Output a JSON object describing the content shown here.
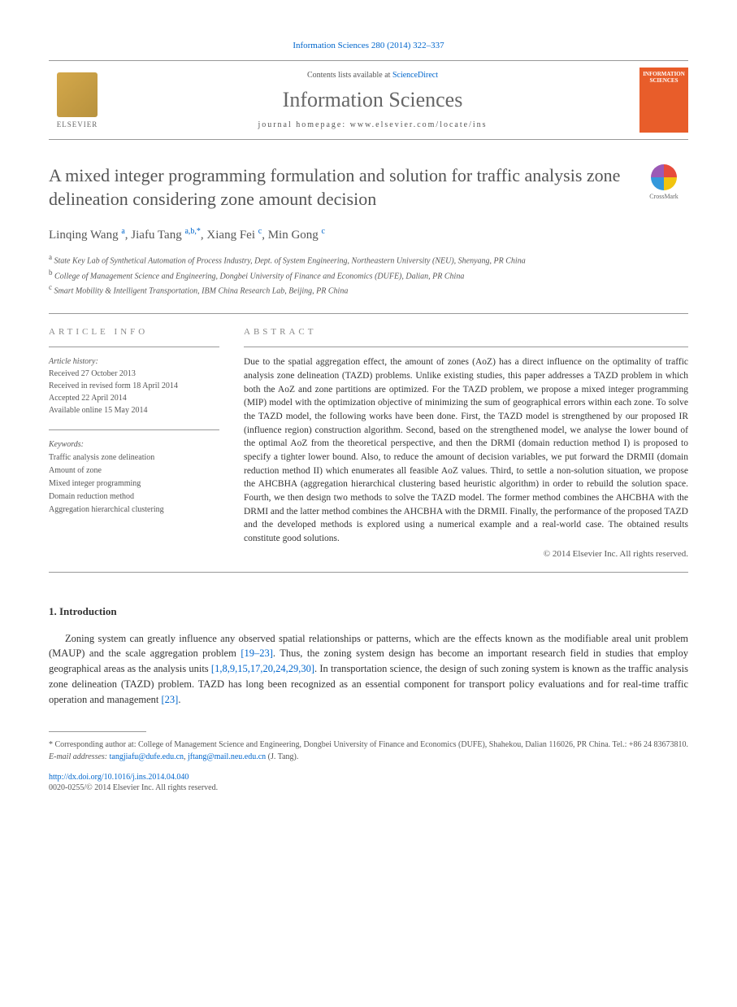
{
  "journal_ref": "Information Sciences 280 (2014) 322–337",
  "header": {
    "publisher_name": "ELSEVIER",
    "contents_prefix": "Contents lists available at ",
    "contents_link": "ScienceDirect",
    "journal_name": "Information Sciences",
    "homepage_prefix": "journal homepage: ",
    "homepage_url": "www.elsevier.com/locate/ins",
    "cover_title": "INFORMATION SCIENCES"
  },
  "crossmark": "CrossMark",
  "title": "A mixed integer programming formulation and solution for traffic analysis zone delineation considering zone amount decision",
  "authors": [
    {
      "name": "Linqing Wang",
      "marks": "a"
    },
    {
      "name": "Jiafu Tang",
      "marks": "a,b,*"
    },
    {
      "name": "Xiang Fei",
      "marks": "c"
    },
    {
      "name": "Min Gong",
      "marks": "c"
    }
  ],
  "affiliations": [
    {
      "mark": "a",
      "text": "State Key Lab of Synthetical Automation of Process Industry, Dept. of System Engineering, Northeastern University (NEU), Shenyang, PR China"
    },
    {
      "mark": "b",
      "text": "College of Management Science and Engineering, Dongbei University of Finance and Economics (DUFE), Dalian, PR China"
    },
    {
      "mark": "c",
      "text": "Smart Mobility & Intelligent Transportation, IBM China Research Lab, Beijing, PR China"
    }
  ],
  "article_info": {
    "label": "ARTICLE INFO",
    "history_label": "Article history:",
    "received": "Received 27 October 2013",
    "revised": "Received in revised form 18 April 2014",
    "accepted": "Accepted 22 April 2014",
    "online": "Available online 15 May 2014"
  },
  "keywords": {
    "label": "Keywords:",
    "items": [
      "Traffic analysis zone delineation",
      "Amount of zone",
      "Mixed integer programming",
      "Domain reduction method",
      "Aggregation hierarchical clustering"
    ]
  },
  "abstract": {
    "label": "ABSTRACT",
    "text": "Due to the spatial aggregation effect, the amount of zones (AoZ) has a direct influence on the optimality of traffic analysis zone delineation (TAZD) problems. Unlike existing studies, this paper addresses a TAZD problem in which both the AoZ and zone partitions are optimized. For the TAZD problem, we propose a mixed integer programming (MIP) model with the optimization objective of minimizing the sum of geographical errors within each zone. To solve the TAZD model, the following works have been done. First, the TAZD model is strengthened by our proposed IR (influence region) construction algorithm. Second, based on the strengthened model, we analyse the lower bound of the optimal AoZ from the theoretical perspective, and then the DRMI (domain reduction method I) is proposed to specify a tighter lower bound. Also, to reduce the amount of decision variables, we put forward the DRMII (domain reduction method II) which enumerates all feasible AoZ values. Third, to settle a non-solution situation, we propose the AHCBHA (aggregation hierarchical clustering based heuristic algorithm) in order to rebuild the solution space. Fourth, we then design two methods to solve the TAZD model. The former method combines the AHCBHA with the DRMI and the latter method combines the AHCBHA with the DRMII. Finally, the performance of the proposed TAZD and the developed methods is explored using a numerical example and a real-world case. The obtained results constitute good solutions.",
    "copyright": "© 2014 Elsevier Inc. All rights reserved."
  },
  "intro": {
    "heading": "1. Introduction",
    "p1_a": "Zoning system can greatly influence any observed spatial relationships or patterns, which are the effects known as the modifiable areal unit problem (MAUP) and the scale aggregation problem ",
    "p1_ref1": "[19–23]",
    "p1_b": ". Thus, the zoning system design has become an important research field in studies that employ geographical areas as the analysis units ",
    "p1_ref2": "[1,8,9,15,17,20,24,29,30]",
    "p1_c": ". In transportation science, the design of such zoning system is known as the traffic analysis zone delineation (TAZD) problem. TAZD has long been recognized as an essential component for transport policy evaluations and for real-time traffic operation and management ",
    "p1_ref3": "[23]",
    "p1_d": "."
  },
  "footnotes": {
    "corresponding": "* Corresponding author at: College of Management Science and Engineering, Dongbei University of Finance and Economics (DUFE), Shahekou, Dalian 116026, PR China. Tel.: +86 24 83673810.",
    "email_label": "E-mail addresses: ",
    "email1": "tangjiafu@dufe.edu.cn",
    "email_sep": ", ",
    "email2": "jftang@mail.neu.edu.cn",
    "email_tail": " (J. Tang).",
    "doi": "http://dx.doi.org/10.1016/j.ins.2014.04.040",
    "issn": "0020-0255/© 2014 Elsevier Inc. All rights reserved."
  },
  "colors": {
    "link": "#0066cc",
    "text": "#333333",
    "muted": "#555555",
    "heading_gray": "#666666",
    "cover_bg": "#e85d2a",
    "border": "#999999"
  }
}
